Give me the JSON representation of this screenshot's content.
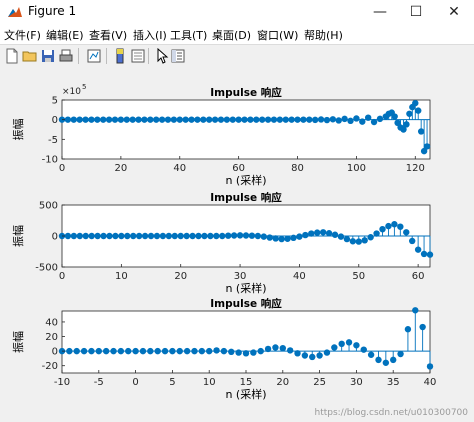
{
  "window": {
    "title": "Figure 1",
    "min_icon": "minimize-icon",
    "max_icon": "maximize-icon",
    "close_icon": "close-icon"
  },
  "menu": [
    "文件(F)",
    "编辑(E)",
    "查看(V)",
    "插入(I)",
    "工具(T)",
    "桌面(D)",
    "窗口(W)",
    "帮助(H)"
  ],
  "toolbar": [
    "new-figure-icon",
    "open-file-icon",
    "save-icon",
    "print-icon",
    "link-icon",
    "colorbar-icon",
    "legend-icon",
    "pointer-icon",
    "property-editor-icon"
  ],
  "watermark": "https://blog.csdn.net/u010300700",
  "colors": {
    "stem": "#0072bd",
    "axes": "#262626",
    "grid_bg": "#ffffff",
    "figure_bg": "#f0f0f0"
  },
  "chart_data": [
    {
      "type": "stem",
      "title": "Impulse 响应",
      "xlabel": "n (采样)",
      "ylabel": "振幅",
      "exponent_label": "×10",
      "exponent_power": "5",
      "xlim": [
        0,
        125
      ],
      "ylim": [
        -10,
        5
      ],
      "xticks": [
        0,
        20,
        40,
        60,
        80,
        100,
        120
      ],
      "yticks": [
        -10,
        -5,
        0,
        5
      ],
      "x": [
        0,
        2,
        4,
        6,
        8,
        10,
        12,
        14,
        16,
        18,
        20,
        22,
        24,
        26,
        28,
        30,
        32,
        34,
        36,
        38,
        40,
        42,
        44,
        46,
        48,
        50,
        52,
        54,
        56,
        58,
        60,
        62,
        64,
        66,
        68,
        70,
        72,
        74,
        76,
        78,
        80,
        82,
        84,
        86,
        88,
        90,
        92,
        94,
        96,
        98,
        100,
        102,
        104,
        106,
        108,
        110,
        111,
        112,
        113,
        114,
        115,
        116,
        117,
        118,
        119,
        120,
        121,
        122,
        123,
        124
      ],
      "y": [
        0,
        0,
        0,
        0,
        0,
        0,
        0,
        0,
        0,
        0,
        0,
        0,
        0,
        0,
        0,
        0,
        0,
        0,
        0,
        0,
        0,
        0,
        0,
        0,
        0,
        0,
        0,
        0,
        0,
        0,
        0,
        0,
        0,
        0,
        0,
        0,
        0,
        0,
        0,
        0,
        0,
        0,
        0,
        -0.05,
        0.05,
        -0.1,
        0.1,
        -0.2,
        0.2,
        -0.3,
        0.3,
        -0.5,
        0.5,
        -0.6,
        0.2,
        0.8,
        1.5,
        1.8,
        0.8,
        -0.8,
        -2.0,
        -2.5,
        -1.2,
        1.5,
        3.2,
        4.2,
        2.3,
        -3.0,
        -8.0,
        -6.8
      ]
    },
    {
      "type": "stem",
      "title": "Impulse 响应",
      "xlabel": "n (采样)",
      "ylabel": "振幅",
      "xlim": [
        0,
        62
      ],
      "ylim": [
        -500,
        500
      ],
      "xticks": [
        0,
        10,
        20,
        30,
        40,
        50,
        60
      ],
      "yticks": [
        -500,
        0,
        500
      ],
      "x": [
        0,
        1,
        2,
        3,
        4,
        5,
        6,
        7,
        8,
        9,
        10,
        11,
        12,
        13,
        14,
        15,
        16,
        17,
        18,
        19,
        20,
        21,
        22,
        23,
        24,
        25,
        26,
        27,
        28,
        29,
        30,
        31,
        32,
        33,
        34,
        35,
        36,
        37,
        38,
        39,
        40,
        41,
        42,
        43,
        44,
        45,
        46,
        47,
        48,
        49,
        50,
        51,
        52,
        53,
        54,
        55,
        56,
        57,
        58,
        59,
        60,
        61,
        62
      ],
      "y": [
        0,
        0,
        0,
        0,
        0,
        0,
        0,
        0,
        0,
        0,
        0,
        0,
        0,
        0,
        0,
        0,
        0,
        0,
        0,
        0,
        0,
        0,
        0,
        0,
        0,
        0,
        0,
        0,
        5,
        8,
        10,
        8,
        5,
        0,
        -10,
        -25,
        -40,
        -50,
        -45,
        -30,
        -10,
        15,
        40,
        55,
        60,
        45,
        20,
        -10,
        -50,
        -85,
        -90,
        -70,
        -20,
        40,
        110,
        160,
        190,
        150,
        60,
        -80,
        -220,
        -290,
        -300
      ]
    },
    {
      "type": "stem",
      "title": "Impulse 响应",
      "xlabel": "n (采样)",
      "ylabel": "振幅",
      "xlim": [
        -10,
        40
      ],
      "ylim": [
        -30,
        55
      ],
      "xticks": [
        -10,
        -5,
        0,
        5,
        10,
        15,
        20,
        25,
        30,
        35,
        40
      ],
      "yticks": [
        -20,
        0,
        20,
        40
      ],
      "x": [
        -10,
        -9,
        -8,
        -7,
        -6,
        -5,
        -4,
        -3,
        -2,
        -1,
        0,
        1,
        2,
        3,
        4,
        5,
        6,
        7,
        8,
        9,
        10,
        11,
        12,
        13,
        14,
        15,
        16,
        17,
        18,
        19,
        20,
        21,
        22,
        23,
        24,
        25,
        26,
        27,
        28,
        29,
        30,
        31,
        32,
        33,
        34,
        35,
        36,
        37,
        38,
        39,
        40
      ],
      "y": [
        0,
        0,
        0,
        0,
        0,
        0,
        0,
        0,
        0,
        0,
        0,
        0,
        0,
        0,
        0,
        0,
        0,
        0,
        0,
        0,
        0,
        1,
        0,
        -1,
        -2,
        -3,
        -2,
        0,
        3,
        5,
        4,
        1,
        -3,
        -6,
        -8,
        -6,
        -2,
        5,
        10,
        12,
        8,
        2,
        -5,
        -12,
        -16,
        -12,
        -4,
        30,
        56,
        33,
        -21
      ]
    }
  ]
}
